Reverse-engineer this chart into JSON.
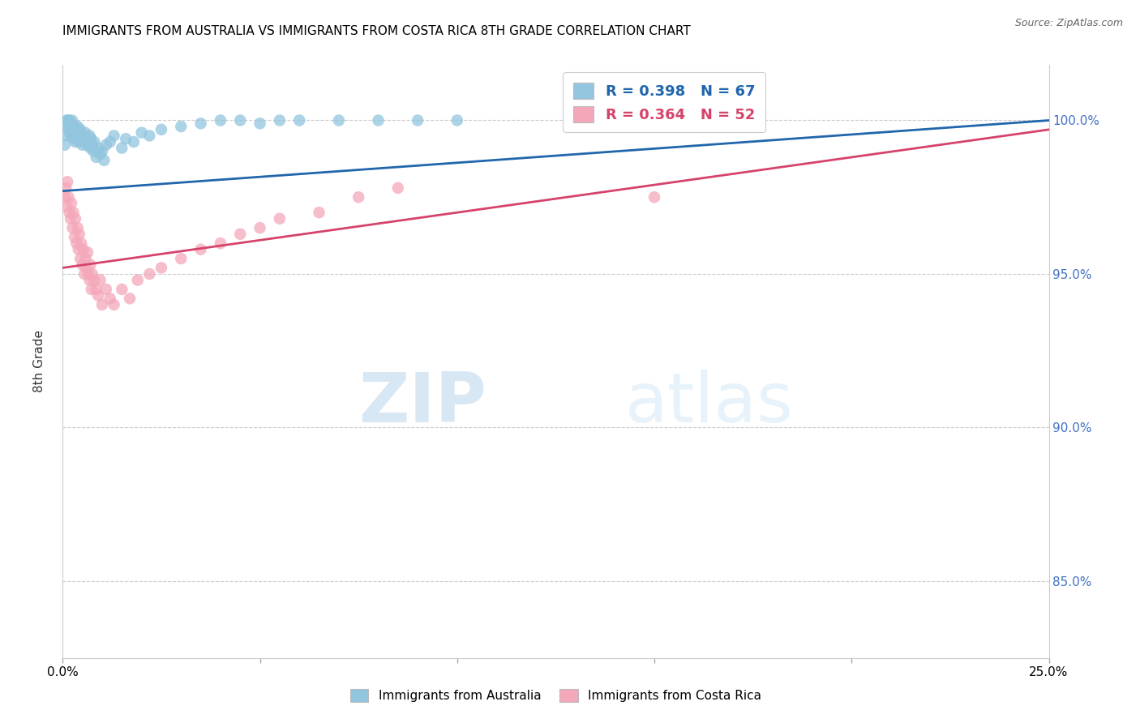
{
  "title": "IMMIGRANTS FROM AUSTRALIA VS IMMIGRANTS FROM COSTA RICA 8TH GRADE CORRELATION CHART",
  "source": "Source: ZipAtlas.com",
  "ylabel": "8th Grade",
  "ylabel_right_ticks": [
    100.0,
    95.0,
    90.0,
    85.0
  ],
  "xmin": 0.0,
  "xmax": 25.0,
  "ymin": 82.5,
  "ymax": 101.8,
  "australia_color": "#92c5de",
  "costa_rica_color": "#f4a7b9",
  "australia_line_color": "#2166ac",
  "costa_rica_line_color": "#d6436a",
  "legend_R_australia": "R = 0.398",
  "legend_N_australia": "N = 67",
  "legend_R_costa_rica": "R = 0.364",
  "legend_N_costa_rica": "N = 52",
  "australia_x": [
    0.05,
    0.08,
    0.1,
    0.12,
    0.13,
    0.15,
    0.16,
    0.17,
    0.18,
    0.2,
    0.21,
    0.22,
    0.23,
    0.24,
    0.25,
    0.27,
    0.28,
    0.3,
    0.31,
    0.32,
    0.33,
    0.35,
    0.37,
    0.38,
    0.4,
    0.42,
    0.44,
    0.45,
    0.47,
    0.5,
    0.52,
    0.55,
    0.57,
    0.6,
    0.62,
    0.65,
    0.68,
    0.7,
    0.72,
    0.75,
    0.78,
    0.8,
    0.85,
    0.9,
    0.95,
    1.0,
    1.05,
    1.1,
    1.2,
    1.3,
    1.5,
    1.6,
    1.8,
    2.0,
    2.2,
    2.5,
    3.0,
    3.5,
    4.0,
    4.5,
    5.0,
    5.5,
    6.0,
    7.0,
    8.0,
    9.0,
    10.0
  ],
  "australia_y": [
    99.2,
    99.5,
    100.0,
    99.8,
    100.0,
    99.9,
    99.7,
    100.0,
    99.6,
    99.8,
    99.5,
    99.9,
    99.7,
    100.0,
    99.8,
    99.4,
    99.6,
    99.5,
    99.8,
    99.3,
    99.7,
    99.6,
    99.4,
    99.8,
    99.5,
    99.3,
    99.7,
    99.6,
    99.4,
    99.2,
    99.5,
    99.3,
    99.6,
    99.4,
    99.2,
    99.3,
    99.5,
    99.1,
    99.4,
    99.2,
    99.0,
    99.3,
    98.8,
    99.1,
    98.9,
    99.0,
    98.7,
    99.2,
    99.3,
    99.5,
    99.1,
    99.4,
    99.3,
    99.6,
    99.5,
    99.7,
    99.8,
    99.9,
    100.0,
    100.0,
    99.9,
    100.0,
    100.0,
    100.0,
    100.0,
    100.0,
    100.0
  ],
  "costa_rica_x": [
    0.05,
    0.08,
    0.1,
    0.12,
    0.15,
    0.17,
    0.2,
    0.22,
    0.25,
    0.27,
    0.3,
    0.32,
    0.35,
    0.38,
    0.4,
    0.42,
    0.45,
    0.47,
    0.5,
    0.52,
    0.55,
    0.58,
    0.6,
    0.63,
    0.65,
    0.68,
    0.7,
    0.73,
    0.75,
    0.8,
    0.85,
    0.9,
    0.95,
    1.0,
    1.1,
    1.2,
    1.3,
    1.5,
    1.7,
    1.9,
    2.2,
    2.5,
    3.0,
    3.5,
    4.0,
    4.5,
    5.0,
    5.5,
    6.5,
    7.5,
    8.5,
    15.0
  ],
  "costa_rica_y": [
    97.5,
    97.8,
    97.2,
    98.0,
    97.5,
    97.0,
    96.8,
    97.3,
    96.5,
    97.0,
    96.2,
    96.8,
    96.0,
    96.5,
    95.8,
    96.3,
    95.5,
    96.0,
    95.3,
    95.8,
    95.0,
    95.5,
    95.2,
    95.7,
    95.0,
    94.8,
    95.3,
    94.5,
    95.0,
    94.8,
    94.5,
    94.3,
    94.8,
    94.0,
    94.5,
    94.2,
    94.0,
    94.5,
    94.2,
    94.8,
    95.0,
    95.2,
    95.5,
    95.8,
    96.0,
    96.3,
    96.5,
    96.8,
    97.0,
    97.5,
    97.8,
    97.5
  ],
  "watermark_zip": "ZIP",
  "watermark_atlas": "atlas",
  "grid_color": "#cccccc",
  "right_axis_color": "#4472c4",
  "title_fontsize": 11,
  "source_fontsize": 9
}
